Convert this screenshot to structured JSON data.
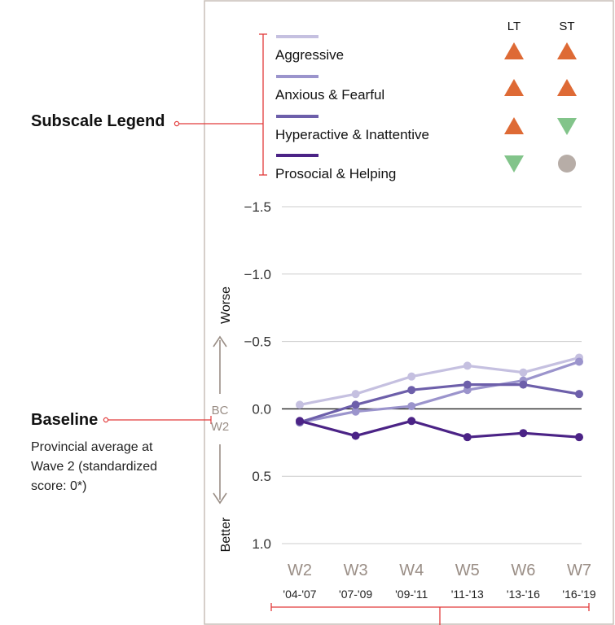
{
  "callouts": {
    "legend_title": "Subscale Legend",
    "baseline_title": "Baseline",
    "baseline_desc_1": "Provincial average at",
    "baseline_desc_2": "Wave 2  (standardized",
    "baseline_desc_3": "score: 0*)"
  },
  "trend_headers": {
    "lt": "LT",
    "st": "ST"
  },
  "baseline_marker": {
    "line1": "BC",
    "line2": "W2"
  },
  "direction": {
    "worse": "Worse",
    "better": "Better"
  },
  "colors": {
    "trend_up": "#de6a35",
    "trend_down": "#82c48a",
    "trend_flat": "#b7ada7",
    "frame": "#c8bfb8",
    "accent_red": "#e23b3b",
    "grid": "#cccccc",
    "arrow": "#9a8e86"
  },
  "chart_data": {
    "type": "line",
    "y_inverted": true,
    "ylim": [
      -1.5,
      1.0
    ],
    "yticks": [
      "-1.5",
      "-1.0",
      "-0.5",
      "0.0",
      "0.5",
      "1.0"
    ],
    "ytick_values": [
      -1.5,
      -1.0,
      -0.5,
      0.0,
      0.5,
      1.0
    ],
    "baseline": 0.0,
    "categories": [
      "W2",
      "W3",
      "W4",
      "W5",
      "W6",
      "W7"
    ],
    "category_years": [
      "'04-'07",
      "'07-'09",
      "'09-'11",
      "'11-'13",
      "'13-'16",
      "'16-'19"
    ],
    "series": [
      {
        "name": "Aggressive",
        "color": "#c5c0e0",
        "values": [
          -0.03,
          -0.11,
          -0.24,
          -0.32,
          -0.27,
          -0.38
        ],
        "lt": "up",
        "st": "up"
      },
      {
        "name": "Anxious & Fearful",
        "color": "#9b94cc",
        "values": [
          0.1,
          0.02,
          -0.02,
          -0.14,
          -0.21,
          -0.35
        ],
        "lt": "up",
        "st": "up"
      },
      {
        "name": "Hyperactive & Inattentive",
        "color": "#6d5faa",
        "values": [
          0.1,
          -0.03,
          -0.14,
          -0.18,
          -0.18,
          -0.11
        ],
        "lt": "up",
        "st": "down"
      },
      {
        "name": "Prosocial & Helping",
        "color": "#4b2386",
        "values": [
          0.09,
          0.2,
          0.09,
          0.21,
          0.18,
          0.21
        ],
        "lt": "down",
        "st": "flat"
      }
    ]
  }
}
